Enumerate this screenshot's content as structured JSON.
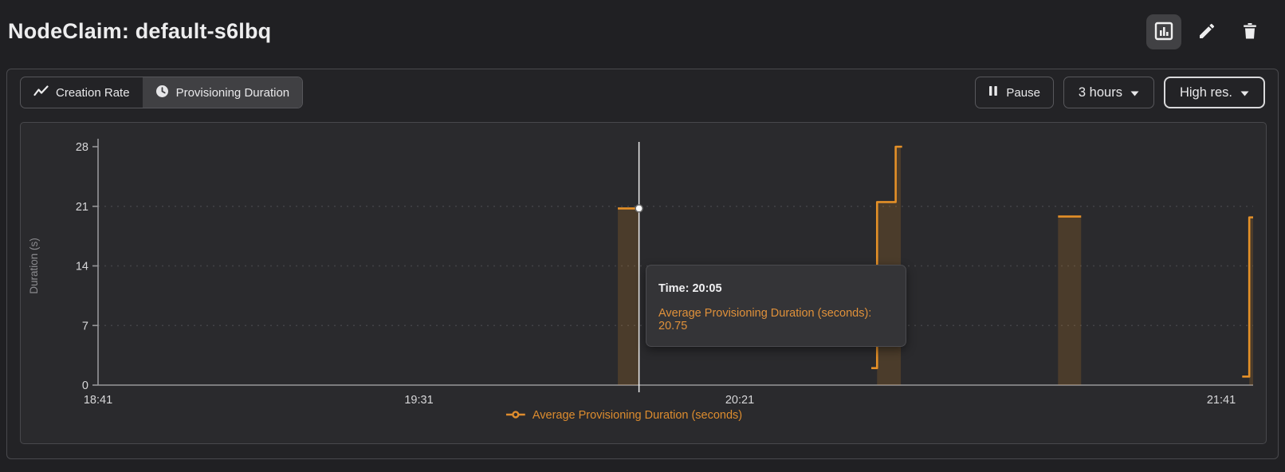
{
  "header": {
    "title": "NodeClaim: default-s6lbq",
    "action_icons": [
      "bar-chart-icon",
      "pencil-icon",
      "trash-icon"
    ]
  },
  "toolbar": {
    "tabs": [
      {
        "label": "Creation Rate",
        "icon": "trend-line-icon",
        "active": false
      },
      {
        "label": "Provisioning Duration",
        "icon": "clock-icon",
        "active": true
      }
    ],
    "pause": {
      "label": "Pause",
      "icon": "pause-icon"
    },
    "time_range": {
      "value": "3 hours",
      "icon": "caret-down-icon"
    },
    "resolution": {
      "value": "High res.",
      "icon": "caret-down-icon"
    }
  },
  "tooltip": {
    "line1": "Time: 20:05",
    "line2": "Average Provisioning Duration (seconds): 20.75"
  },
  "legend": {
    "label": "Average Provisioning Duration (seconds)"
  },
  "colors": {
    "series_orange": "#e59028",
    "legend_orange": "#dd8c2e",
    "area_fill": "rgba(229,144,40,0.18)",
    "axis_gray": "#97979a",
    "grid_gray": "#424246",
    "hover_white": "#ececec"
  },
  "chart_data": {
    "type": "area",
    "subtype": "step-after",
    "title": "",
    "xlabel": "",
    "ylabel": "Duration (s)",
    "ylim": [
      0,
      28
    ],
    "y_ticks": [
      0,
      7,
      14,
      21,
      28
    ],
    "grid": "horizontal-dashed",
    "legend_position": "bottom",
    "x_axis": {
      "start": "18:41",
      "end": "21:41",
      "duration_minutes": 180,
      "ticks": [
        {
          "label": "18:41",
          "minute": 0
        },
        {
          "label": "19:31",
          "minute": 50
        },
        {
          "label": "20:21",
          "minute": 100
        },
        {
          "label": "21:41",
          "minute": 180
        }
      ]
    },
    "series": [
      {
        "name": "Average Provisioning Duration (seconds)",
        "color": "#e59028",
        "shapes": [
          {
            "kind": "bar",
            "start_minute": 81,
            "end_minute": 84.3,
            "value": 20.75,
            "approx_time": "20:02-20:05"
          },
          {
            "kind": "step",
            "approx_time": "20:41-20:46",
            "points": [
              [
                120.5,
                2
              ],
              [
                121.4,
                2
              ],
              [
                121.4,
                21.5
              ],
              [
                124.3,
                21.5
              ],
              [
                124.3,
                28
              ],
              [
                125.3,
                28
              ]
            ],
            "fill_start_minute": 121.4,
            "fill_end_minute": 125.1
          },
          {
            "kind": "bar",
            "start_minute": 149.6,
            "end_minute": 153.2,
            "value": 19.8,
            "approx_time": "21:11-21:14"
          },
          {
            "kind": "step",
            "approx_time": "21:39-21:41",
            "points": [
              [
                178.3,
                1
              ],
              [
                179.4,
                1
              ],
              [
                179.4,
                19.7
              ],
              [
                180,
                19.7
              ]
            ],
            "fill_start_minute": 179.4,
            "fill_end_minute": 180
          }
        ]
      }
    ],
    "hover": {
      "minute": 84.3,
      "value": 20.75,
      "time": "20:05"
    }
  }
}
